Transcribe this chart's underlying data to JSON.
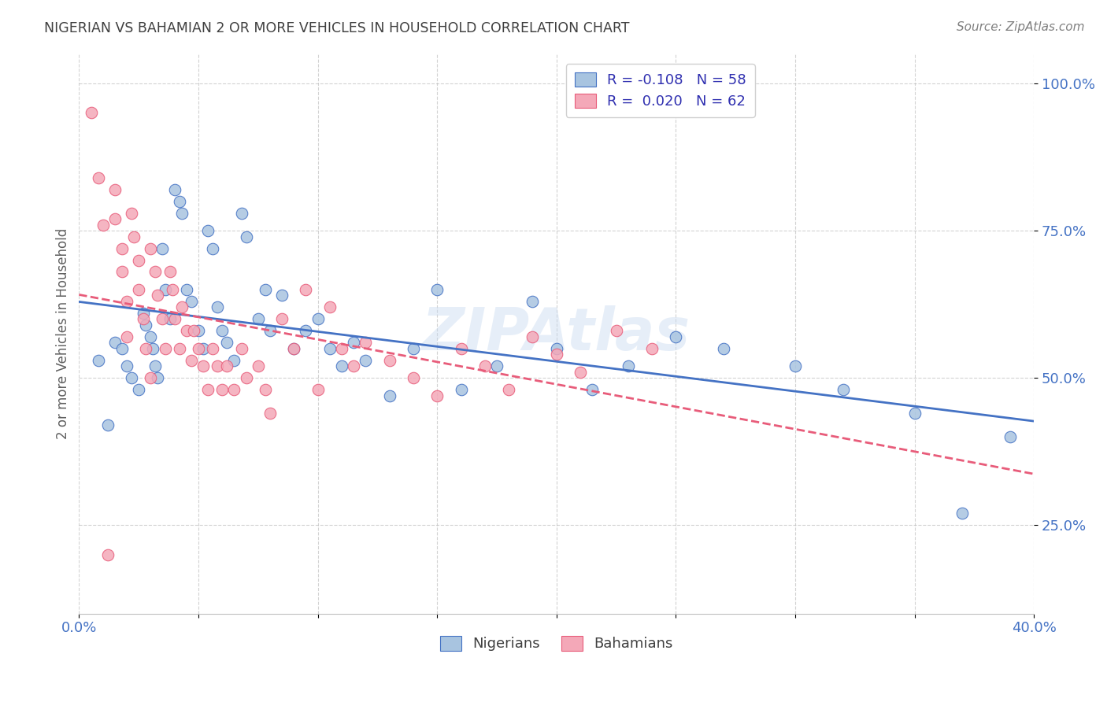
{
  "title": "NIGERIAN VS BAHAMIAN 2 OR MORE VEHICLES IN HOUSEHOLD CORRELATION CHART",
  "source": "Source: ZipAtlas.com",
  "ylabel": "2 or more Vehicles in Household",
  "watermark": "ZIPAtlas",
  "nigerian_color": "#a8c4e0",
  "bahamian_color": "#f4a8b8",
  "trend_nigerian_color": "#4472c4",
  "trend_bahamian_color": "#e85c7a",
  "title_color": "#404040",
  "axis_label_color": "#4472c4",
  "xlim": [
    0.0,
    0.4
  ],
  "ylim": [
    0.1,
    1.05
  ],
  "nigerian_x": [
    0.008,
    0.012,
    0.015,
    0.018,
    0.02,
    0.022,
    0.025,
    0.027,
    0.028,
    0.03,
    0.031,
    0.032,
    0.033,
    0.035,
    0.036,
    0.038,
    0.04,
    0.042,
    0.043,
    0.045,
    0.047,
    0.05,
    0.052,
    0.054,
    0.056,
    0.058,
    0.06,
    0.062,
    0.065,
    0.068,
    0.07,
    0.075,
    0.078,
    0.08,
    0.085,
    0.09,
    0.095,
    0.1,
    0.105,
    0.11,
    0.115,
    0.12,
    0.13,
    0.14,
    0.15,
    0.16,
    0.175,
    0.19,
    0.2,
    0.215,
    0.23,
    0.25,
    0.27,
    0.3,
    0.32,
    0.35,
    0.37,
    0.39
  ],
  "nigerian_y": [
    0.53,
    0.42,
    0.56,
    0.55,
    0.52,
    0.5,
    0.48,
    0.61,
    0.59,
    0.57,
    0.55,
    0.52,
    0.5,
    0.72,
    0.65,
    0.6,
    0.82,
    0.8,
    0.78,
    0.65,
    0.63,
    0.58,
    0.55,
    0.75,
    0.72,
    0.62,
    0.58,
    0.56,
    0.53,
    0.78,
    0.74,
    0.6,
    0.65,
    0.58,
    0.64,
    0.55,
    0.58,
    0.6,
    0.55,
    0.52,
    0.56,
    0.53,
    0.47,
    0.55,
    0.65,
    0.48,
    0.52,
    0.63,
    0.55,
    0.48,
    0.52,
    0.57,
    0.55,
    0.52,
    0.48,
    0.44,
    0.27,
    0.4
  ],
  "bahamian_x": [
    0.005,
    0.008,
    0.01,
    0.012,
    0.015,
    0.015,
    0.018,
    0.018,
    0.02,
    0.02,
    0.022,
    0.023,
    0.025,
    0.025,
    0.027,
    0.028,
    0.03,
    0.03,
    0.032,
    0.033,
    0.035,
    0.036,
    0.038,
    0.039,
    0.04,
    0.042,
    0.043,
    0.045,
    0.047,
    0.048,
    0.05,
    0.052,
    0.054,
    0.056,
    0.058,
    0.06,
    0.062,
    0.065,
    0.068,
    0.07,
    0.075,
    0.078,
    0.08,
    0.085,
    0.09,
    0.095,
    0.1,
    0.105,
    0.11,
    0.115,
    0.12,
    0.13,
    0.14,
    0.15,
    0.16,
    0.17,
    0.18,
    0.19,
    0.2,
    0.21,
    0.225,
    0.24
  ],
  "bahamian_y": [
    0.95,
    0.84,
    0.76,
    0.2,
    0.82,
    0.77,
    0.72,
    0.68,
    0.63,
    0.57,
    0.78,
    0.74,
    0.7,
    0.65,
    0.6,
    0.55,
    0.5,
    0.72,
    0.68,
    0.64,
    0.6,
    0.55,
    0.68,
    0.65,
    0.6,
    0.55,
    0.62,
    0.58,
    0.53,
    0.58,
    0.55,
    0.52,
    0.48,
    0.55,
    0.52,
    0.48,
    0.52,
    0.48,
    0.55,
    0.5,
    0.52,
    0.48,
    0.44,
    0.6,
    0.55,
    0.65,
    0.48,
    0.62,
    0.55,
    0.52,
    0.56,
    0.53,
    0.5,
    0.47,
    0.55,
    0.52,
    0.48,
    0.57,
    0.54,
    0.51,
    0.58,
    0.55
  ]
}
